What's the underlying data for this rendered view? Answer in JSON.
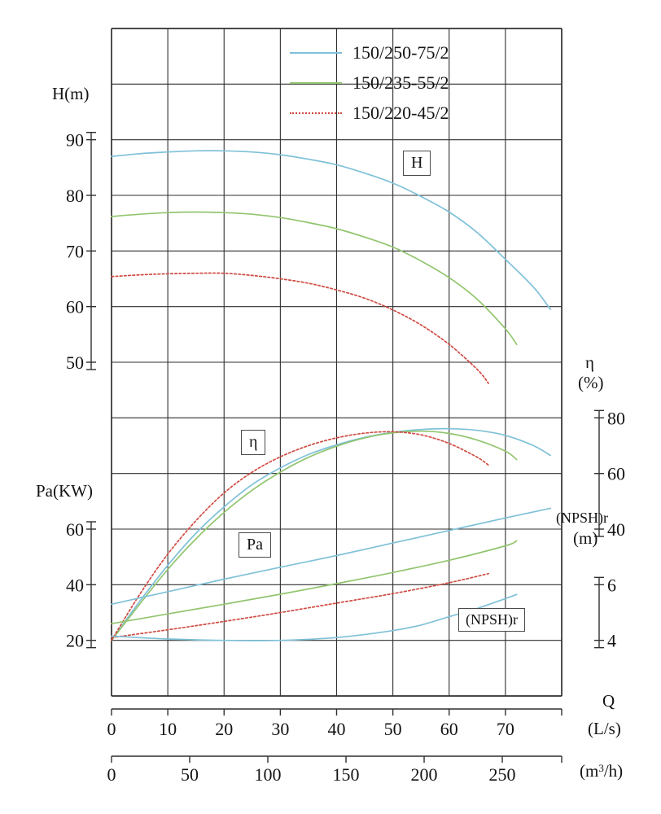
{
  "models": [
    {
      "name": "150/250-75/2",
      "color": "#7fc1d8",
      "line_style": "solid"
    },
    {
      "name": "150/235-55/2",
      "color": "#92c56f",
      "line_style": "solid"
    },
    {
      "name": "150/220-45/2",
      "color": "#d04b42",
      "line_style": "dotted"
    }
  ],
  "axis_labels": {
    "h": "H(m)",
    "pa": "Pa(KW)",
    "eta_symbol": "η",
    "eta_unit": "(%)",
    "npshr": "(NPSH)r",
    "npshr_unit": "(m)",
    "q": "Q",
    "q_unit": "(L/s)",
    "m3h_prefix": "(m",
    "m3h_sup": "3",
    "m3h_suffix": "/h)"
  },
  "annotations": {
    "h_label": "H",
    "eta_label": "η",
    "pa_label": "Pa",
    "npshr_label": "(NPSH)r"
  },
  "chart_data": {
    "type": "line",
    "grid": true,
    "x": {
      "unit": "L/s",
      "min": 0,
      "max": 80,
      "ticks_Ls": [
        0,
        10,
        20,
        30,
        40,
        50,
        60,
        70
      ],
      "secondary_unit": "m3/h",
      "ticks_m3h": [
        0,
        50,
        100,
        150,
        200,
        250
      ]
    },
    "axes": {
      "H": {
        "label": "H(m)",
        "ticks": [
          90,
          80,
          70,
          60,
          50
        ]
      },
      "eta": {
        "label": "η(%)",
        "ticks": [
          80,
          60,
          40
        ]
      },
      "Pa": {
        "label": "Pa(KW)",
        "ticks": [
          60,
          40,
          20
        ]
      },
      "npsh": {
        "label": "(NPSH)r(m)",
        "ticks": [
          6,
          4
        ]
      }
    },
    "series": [
      {
        "quantity": "H",
        "model": "150/250-75/2",
        "axis": "H",
        "points": [
          [
            0,
            87
          ],
          [
            5,
            87.5
          ],
          [
            10,
            87.8
          ],
          [
            15,
            88
          ],
          [
            20,
            88
          ],
          [
            25,
            87.8
          ],
          [
            30,
            87.3
          ],
          [
            35,
            86.5
          ],
          [
            40,
            85.5
          ],
          [
            45,
            84
          ],
          [
            50,
            82.2
          ],
          [
            55,
            79.8
          ],
          [
            60,
            77
          ],
          [
            65,
            73.3
          ],
          [
            70,
            68.5
          ],
          [
            75,
            63.5
          ],
          [
            78,
            59.5
          ]
        ]
      },
      {
        "quantity": "H",
        "model": "150/235-55/2",
        "axis": "H",
        "points": [
          [
            0,
            76.2
          ],
          [
            5,
            76.6
          ],
          [
            10,
            76.9
          ],
          [
            15,
            77
          ],
          [
            20,
            76.9
          ],
          [
            25,
            76.6
          ],
          [
            30,
            76
          ],
          [
            35,
            75.1
          ],
          [
            40,
            74
          ],
          [
            45,
            72.5
          ],
          [
            50,
            70.7
          ],
          [
            55,
            68.2
          ],
          [
            60,
            65.2
          ],
          [
            65,
            61.3
          ],
          [
            70,
            56
          ],
          [
            72,
            53.2
          ]
        ]
      },
      {
        "quantity": "H",
        "model": "150/220-45/2",
        "axis": "H",
        "points": [
          [
            0,
            65.4
          ],
          [
            5,
            65.7
          ],
          [
            10,
            65.9
          ],
          [
            15,
            66
          ],
          [
            20,
            66
          ],
          [
            25,
            65.6
          ],
          [
            30,
            65
          ],
          [
            35,
            64.2
          ],
          [
            40,
            63
          ],
          [
            45,
            61.5
          ],
          [
            50,
            59.4
          ],
          [
            55,
            56.7
          ],
          [
            60,
            53.2
          ],
          [
            65,
            48.7
          ],
          [
            67,
            46.2
          ]
        ]
      },
      {
        "quantity": "eta",
        "model": "150/250-75/2",
        "axis": "eta",
        "points": [
          [
            0,
            0
          ],
          [
            5,
            14
          ],
          [
            10,
            27
          ],
          [
            15,
            38.5
          ],
          [
            20,
            48
          ],
          [
            25,
            56
          ],
          [
            30,
            62
          ],
          [
            35,
            66.8
          ],
          [
            40,
            70.3
          ],
          [
            45,
            73
          ],
          [
            50,
            74.8
          ],
          [
            55,
            75.8
          ],
          [
            60,
            76.1
          ],
          [
            65,
            75.5
          ],
          [
            70,
            73.7
          ],
          [
            75,
            70
          ],
          [
            78,
            66.5
          ]
        ]
      },
      {
        "quantity": "eta",
        "model": "150/235-55/2",
        "axis": "eta",
        "points": [
          [
            0,
            0
          ],
          [
            5,
            13
          ],
          [
            10,
            25.5
          ],
          [
            15,
            36.5
          ],
          [
            20,
            46
          ],
          [
            25,
            54
          ],
          [
            30,
            60.5
          ],
          [
            35,
            65.8
          ],
          [
            40,
            69.8
          ],
          [
            45,
            72.8
          ],
          [
            50,
            74.6
          ],
          [
            55,
            75.2
          ],
          [
            60,
            74.4
          ],
          [
            65,
            72
          ],
          [
            70,
            68
          ],
          [
            72,
            65
          ]
        ]
      },
      {
        "quantity": "eta",
        "model": "150/220-45/2",
        "axis": "eta",
        "points": [
          [
            0,
            0
          ],
          [
            5,
            16.5
          ],
          [
            10,
            31
          ],
          [
            15,
            43
          ],
          [
            20,
            53
          ],
          [
            25,
            60.5
          ],
          [
            30,
            66
          ],
          [
            35,
            70
          ],
          [
            40,
            72.8
          ],
          [
            45,
            74.5
          ],
          [
            50,
            75
          ],
          [
            55,
            73.9
          ],
          [
            60,
            70.8
          ],
          [
            65,
            65.8
          ],
          [
            67,
            63
          ]
        ]
      },
      {
        "quantity": "Pa",
        "model": "150/250-75/2",
        "axis": "Pa",
        "points": [
          [
            0,
            33
          ],
          [
            10,
            37.5
          ],
          [
            20,
            42
          ],
          [
            30,
            46.3
          ],
          [
            40,
            50.5
          ],
          [
            50,
            55
          ],
          [
            60,
            59.5
          ],
          [
            70,
            64
          ],
          [
            78,
            67.5
          ]
        ]
      },
      {
        "quantity": "Pa",
        "model": "150/235-55/2",
        "axis": "Pa",
        "points": [
          [
            0,
            26
          ],
          [
            10,
            29.5
          ],
          [
            20,
            33
          ],
          [
            30,
            36.6
          ],
          [
            40,
            40.4
          ],
          [
            50,
            44.4
          ],
          [
            60,
            48.8
          ],
          [
            70,
            54
          ],
          [
            72,
            55.8
          ]
        ]
      },
      {
        "quantity": "Pa",
        "model": "150/220-45/2",
        "axis": "Pa",
        "points": [
          [
            0,
            21
          ],
          [
            10,
            23.8
          ],
          [
            20,
            26.8
          ],
          [
            30,
            30
          ],
          [
            40,
            33.4
          ],
          [
            50,
            36.8
          ],
          [
            60,
            40.7
          ],
          [
            67,
            44
          ]
        ]
      },
      {
        "quantity": "NPSHr",
        "model": "150/250-75/2",
        "axis": "npsh",
        "points": [
          [
            0,
            4.15
          ],
          [
            10,
            4.05
          ],
          [
            20,
            4
          ],
          [
            30,
            4
          ],
          [
            40,
            4.1
          ],
          [
            50,
            4.35
          ],
          [
            55,
            4.55
          ],
          [
            60,
            4.85
          ],
          [
            65,
            5.15
          ],
          [
            70,
            5.5
          ],
          [
            72,
            5.65
          ]
        ]
      }
    ]
  }
}
